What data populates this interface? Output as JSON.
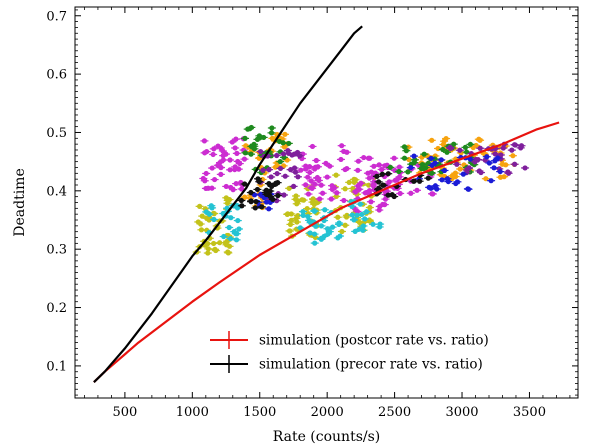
{
  "chart_data": {
    "type": "scatter",
    "title": "",
    "xlabel": "Rate (counts/s)",
    "ylabel": "Deadtime",
    "xlim": [
      130,
      3860
    ],
    "ylim": [
      0.045,
      0.715
    ],
    "xticks": [
      500,
      1000,
      1500,
      2000,
      2500,
      3000,
      3500
    ],
    "yticks": [
      0.1,
      0.2,
      0.3,
      0.4,
      0.5,
      0.6,
      0.7
    ],
    "xtick_labels": [
      "500",
      "1000",
      "1500",
      "2000",
      "2500",
      "3000",
      "3500"
    ],
    "ytick_labels": [
      "0.1",
      "0.2",
      "0.3",
      "0.4",
      "0.5",
      "0.6",
      "0.7"
    ],
    "legend_position": "lower-right",
    "lines": [
      {
        "name": "simulation (postcor rate vs. ratio)",
        "color": "#e8130f",
        "x": [
          270,
          350,
          450,
          600,
          800,
          1000,
          1200,
          1500,
          1800,
          2100,
          2400,
          2700,
          3000,
          3300,
          3550,
          3720
        ],
        "y": [
          0.072,
          0.09,
          0.11,
          0.14,
          0.175,
          0.21,
          0.243,
          0.29,
          0.33,
          0.37,
          0.4,
          0.43,
          0.455,
          0.48,
          0.505,
          0.517
        ]
      },
      {
        "name": "simulation (precor rate vs. ratio)",
        "color": "#000000",
        "x": [
          270,
          350,
          500,
          700,
          900,
          1000,
          1100,
          1200,
          1300,
          1400,
          1500,
          1600,
          1700,
          1800,
          1900,
          2000,
          2100,
          2200,
          2260
        ],
        "y": [
          0.072,
          0.09,
          0.13,
          0.19,
          0.255,
          0.288,
          0.315,
          0.345,
          0.375,
          0.405,
          0.445,
          0.48,
          0.515,
          0.55,
          0.58,
          0.61,
          0.64,
          0.67,
          0.682
        ]
      }
    ],
    "scatter_series": [
      {
        "color": "#c3c21a",
        "clusters": [
          [
            1030,
            1280,
            0.29,
            0.39,
            45
          ],
          [
            1700,
            1950,
            0.32,
            0.41,
            40
          ],
          [
            2050,
            2350,
            0.33,
            0.43,
            40
          ]
        ]
      },
      {
        "color": "#cc2cd1",
        "clusters": [
          [
            1080,
            1400,
            0.4,
            0.49,
            45
          ],
          [
            1800,
            2150,
            0.38,
            0.48,
            40
          ],
          [
            2200,
            2550,
            0.36,
            0.46,
            40
          ],
          [
            2300,
            2800,
            0.38,
            0.45,
            25
          ]
        ]
      },
      {
        "color": "#24c3d3",
        "clusters": [
          [
            1100,
            1350,
            0.31,
            0.38,
            25
          ],
          [
            1800,
            2100,
            0.31,
            0.37,
            30
          ],
          [
            2150,
            2400,
            0.33,
            0.39,
            18
          ]
        ]
      },
      {
        "color": "#f7a30f",
        "clusters": [
          [
            1380,
            1550,
            0.37,
            0.49,
            20
          ],
          [
            1550,
            1720,
            0.44,
            0.5,
            18
          ],
          [
            2600,
            3400,
            0.42,
            0.49,
            60
          ]
        ]
      },
      {
        "color": "#1e8a1e",
        "clusters": [
          [
            1380,
            1720,
            0.43,
            0.51,
            30
          ],
          [
            2450,
            3100,
            0.43,
            0.48,
            40
          ]
        ]
      },
      {
        "color": "#7f1f9c",
        "clusters": [
          [
            1500,
            1800,
            0.38,
            0.47,
            30
          ],
          [
            2900,
            3500,
            0.43,
            0.48,
            35
          ]
        ]
      },
      {
        "color": "#1b1bd6",
        "clusters": [
          [
            1450,
            1600,
            0.36,
            0.4,
            12
          ],
          [
            2600,
            3300,
            0.4,
            0.46,
            30
          ]
        ]
      },
      {
        "color": "#111111",
        "clusters": [
          [
            1350,
            1650,
            0.37,
            0.43,
            25
          ],
          [
            2350,
            2750,
            0.39,
            0.43,
            20
          ]
        ]
      }
    ]
  }
}
